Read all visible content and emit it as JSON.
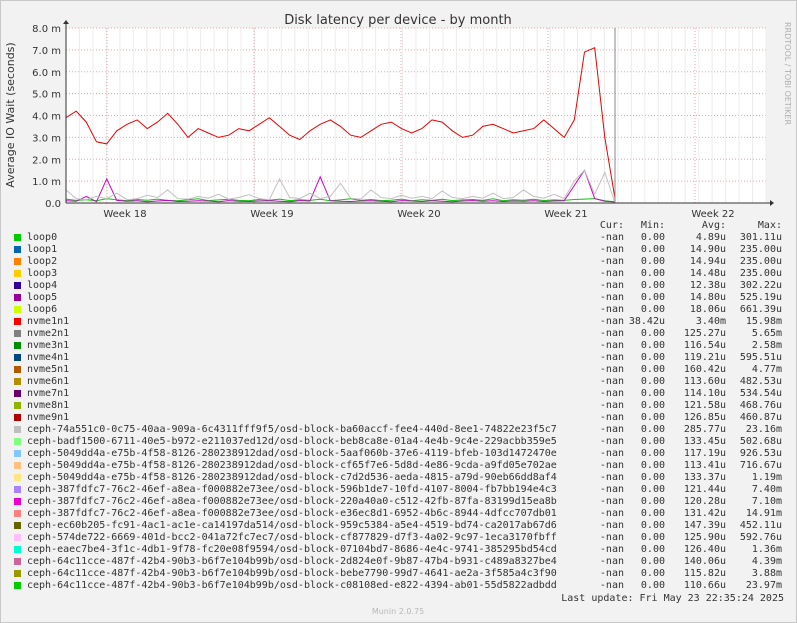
{
  "chart_data": {
    "type": "line",
    "title": "Disk latency per device - by month",
    "ylabel": "Average IO Wait (seconds)",
    "ylim": [
      0,
      0.008
    ],
    "y_ticks": [
      "0.0",
      "1.0 m",
      "2.0 m",
      "3.0 m",
      "4.0 m",
      "5.0 m",
      "6.0 m",
      "7.0 m",
      "8.0 m"
    ],
    "x_ticks": [
      "Week 18",
      "Week 19",
      "Week 20",
      "Week 21",
      "Week 22"
    ],
    "grid": true,
    "watermark": "RRDTOOL / TOBI OETIKER",
    "series": [
      {
        "name": "nvme1n1",
        "color": "#ea0000",
        "values": [
          0.0039,
          0.0042,
          0.0037,
          0.0028,
          0.0027,
          0.0033,
          0.0036,
          0.0038,
          0.0034,
          0.0037,
          0.0041,
          0.0036,
          0.003,
          0.0034,
          0.0032,
          0.003,
          0.0031,
          0.0034,
          0.0033,
          0.0036,
          0.0039,
          0.0035,
          0.0031,
          0.0029,
          0.0033,
          0.0036,
          0.0038,
          0.0035,
          0.0031,
          0.003,
          0.0033,
          0.0036,
          0.0037,
          0.0034,
          0.0032,
          0.0034,
          0.0038,
          0.0037,
          0.0033,
          0.003,
          0.0031,
          0.0035,
          0.0036,
          0.0034,
          0.0032,
          0.0033,
          0.0034,
          0.0038,
          0.0034,
          0.003,
          0.0038,
          0.0069,
          0.0071,
          0.003,
          0.0002
        ]
      },
      {
        "name": "ceph-eaec7be4-3f1c-4db1-9f78-fc20e08f9594/osd-block-07104bd7-8686-4e4c-9741-385295bd54cd",
        "color": "#00cc00",
        "values": [
          0.00018,
          0.00012,
          0.00015,
          0.0001,
          0.0002,
          0.00014,
          0.00011,
          0.00016,
          0.00013,
          0.00018,
          0.00012,
          0.0001,
          0.00015,
          0.00019,
          0.00011,
          0.00014,
          0.00017,
          0.00012,
          0.0001,
          0.00016,
          0.00013,
          0.00018,
          0.00011,
          0.00015,
          0.00012,
          0.00017,
          0.0001,
          0.00014,
          0.00019,
          0.00012,
          0.00016,
          0.00011,
          0.00013,
          0.00018,
          0.0001,
          0.00015,
          0.00012,
          0.00017,
          0.00011,
          0.00014,
          0.00016,
          0.00012,
          0.00019,
          0.0001,
          0.00015,
          0.00013,
          0.00017,
          0.00011,
          0.00014,
          0.00012,
          0.00016,
          0.00018,
          0.0002,
          0.0001,
          5e-05
        ]
      },
      {
        "name": "ceph-387fdfc7-76c2-46ef-a8ea-f000882e73ee/osd-block-220a40a0-c512-42fb-87fa-83199d15ea8b",
        "color": "#cc00cc",
        "values": [
          0.0001,
          8e-05,
          0.0003,
          6e-05,
          0.0011,
          0.00012,
          8e-05,
          0.0001,
          6e-05,
          9e-05,
          0.00012,
          7e-05,
          8e-05,
          0.0001,
          9e-05,
          6e-05,
          0.00011,
          8e-05,
          7e-05,
          9e-05,
          0.0001,
          8e-05,
          6e-05,
          0.00011,
          9e-05,
          0.0012,
          0.0001,
          8e-05,
          7e-05,
          9e-05,
          0.0001,
          8e-05,
          6e-05,
          0.00011,
          9e-05,
          7e-05,
          0.0001,
          8e-05,
          6e-05,
          9e-05,
          0.00011,
          8e-05,
          0.0001,
          7e-05,
          9e-05,
          8e-05,
          0.0001,
          7e-05,
          9e-05,
          0.0001,
          0.0008,
          0.0015,
          0.0002,
          8e-05,
          5e-05
        ]
      },
      {
        "name": "ceph-74a551c0-0c75-40aa-909a-6c4311fff9f5/osd-block-ba60accf-fee4-440d-8ee1-74822e23f5c7",
        "color": "#c0c0c0",
        "values": [
          0.0006,
          0.0002,
          0.00015,
          0.0003,
          0.0002,
          0.00045,
          0.00015,
          0.0002,
          0.00035,
          0.00025,
          0.0006,
          0.0002,
          0.00018,
          0.0003,
          0.00022,
          0.0004,
          0.00018,
          0.00025,
          0.00038,
          0.0002,
          0.00015,
          0.0011,
          0.00025,
          0.0002,
          0.00045,
          0.0002,
          0.0003,
          0.0009,
          0.00022,
          0.00018,
          0.0006,
          0.00025,
          0.0002,
          0.00035,
          0.00022,
          0.0003,
          0.0002,
          0.00055,
          0.00025,
          0.0002,
          0.0003,
          0.00022,
          0.00045,
          0.0002,
          0.00025,
          0.0006,
          0.0003,
          0.00022,
          0.0004,
          0.0002,
          0.001,
          0.0015,
          0.0004,
          0.0014,
          0.0
        ]
      }
    ]
  },
  "legend": {
    "headers": {
      "cur": "Cur:",
      "min": "Min:",
      "avg": "Avg:",
      "max": "Max:"
    },
    "rows": [
      {
        "name": "loop0",
        "color": "#00cc00",
        "cur": "-nan",
        "min": "0.00",
        "avg": "4.89u",
        "max": "301.11u"
      },
      {
        "name": "loop1",
        "color": "#0066b3",
        "cur": "-nan",
        "min": "0.00",
        "avg": "14.90u",
        "max": "235.00u"
      },
      {
        "name": "loop2",
        "color": "#ff8000",
        "cur": "-nan",
        "min": "0.00",
        "avg": "14.94u",
        "max": "235.00u"
      },
      {
        "name": "loop3",
        "color": "#ffcc00",
        "cur": "-nan",
        "min": "0.00",
        "avg": "14.48u",
        "max": "235.00u"
      },
      {
        "name": "loop4",
        "color": "#330099",
        "cur": "-nan",
        "min": "0.00",
        "avg": "12.38u",
        "max": "302.22u"
      },
      {
        "name": "loop5",
        "color": "#990099",
        "cur": "-nan",
        "min": "0.00",
        "avg": "14.80u",
        "max": "525.19u"
      },
      {
        "name": "loop6",
        "color": "#ccff00",
        "cur": "-nan",
        "min": "0.00",
        "avg": "18.06u",
        "max": "661.39u"
      },
      {
        "name": "nvme1n1",
        "color": "#ff0000",
        "cur": "-nan",
        "min": "38.42u",
        "avg": "3.40m",
        "max": "15.98m"
      },
      {
        "name": "nvme2n1",
        "color": "#808080",
        "cur": "-nan",
        "min": "0.00",
        "avg": "125.27u",
        "max": "5.65m"
      },
      {
        "name": "nvme3n1",
        "color": "#008f00",
        "cur": "-nan",
        "min": "0.00",
        "avg": "116.54u",
        "max": "2.58m"
      },
      {
        "name": "nvme4n1",
        "color": "#00487d",
        "cur": "-nan",
        "min": "0.00",
        "avg": "119.21u",
        "max": "595.51u"
      },
      {
        "name": "nvme5n1",
        "color": "#b35a00",
        "cur": "-nan",
        "min": "0.00",
        "avg": "160.42u",
        "max": "4.77m"
      },
      {
        "name": "nvme6n1",
        "color": "#b38f00",
        "cur": "-nan",
        "min": "0.00",
        "avg": "113.60u",
        "max": "482.53u"
      },
      {
        "name": "nvme7n1",
        "color": "#6b006b",
        "cur": "-nan",
        "min": "0.00",
        "avg": "114.10u",
        "max": "534.54u"
      },
      {
        "name": "nvme8n1",
        "color": "#8fb300",
        "cur": "-nan",
        "min": "0.00",
        "avg": "121.58u",
        "max": "468.76u"
      },
      {
        "name": "nvme9n1",
        "color": "#b30000",
        "cur": "-nan",
        "min": "0.00",
        "avg": "126.85u",
        "max": "460.87u"
      },
      {
        "name": "ceph-74a551c0-0c75-40aa-909a-6c4311fff9f5/osd-block-ba60accf-fee4-440d-8ee1-74822e23f5c7",
        "color": "#bebebe",
        "cur": "-nan",
        "min": "0.00",
        "avg": "285.77u",
        "max": "23.16m"
      },
      {
        "name": "ceph-badf1500-6711-40e5-b972-e211037ed12d/osd-block-beb8ca8e-01a4-4e4b-9c4e-229acbb359e5",
        "color": "#80ff80",
        "cur": "-nan",
        "min": "0.00",
        "avg": "133.45u",
        "max": "502.68u"
      },
      {
        "name": "ceph-5049dd4a-e75b-4f58-8126-280238912dad/osd-block-5aaf060b-37e6-4119-bfeb-103d1472470e",
        "color": "#80c9ff",
        "cur": "-nan",
        "min": "0.00",
        "avg": "117.19u",
        "max": "926.53u"
      },
      {
        "name": "ceph-5049dd4a-e75b-4f58-8126-280238912dad/osd-block-cf65f7e6-5d8d-4e86-9cda-a9fd05e702ae",
        "color": "#ffc080",
        "cur": "-nan",
        "min": "0.00",
        "avg": "113.41u",
        "max": "716.67u"
      },
      {
        "name": "ceph-5049dd4a-e75b-4f58-8126-280238912dad/osd-block-c7d2d536-aeda-4815-a79d-90eb66dd8af4",
        "color": "#ffe680",
        "cur": "-nan",
        "min": "0.00",
        "avg": "133.37u",
        "max": "1.19m"
      },
      {
        "name": "ceph-387fdfc7-76c2-46ef-a8ea-f000882e73ee/osd-block-596b1de7-10fd-4107-8004-fb7bb194e4c3",
        "color": "#aa80ff",
        "cur": "-nan",
        "min": "0.00",
        "avg": "121.44u",
        "max": "7.40m"
      },
      {
        "name": "ceph-387fdfc7-76c2-46ef-a8ea-f000882e73ee/osd-block-220a40a0-c512-42fb-87fa-83199d15ea8b",
        "color": "#ee00cc",
        "cur": "-nan",
        "min": "0.00",
        "avg": "120.28u",
        "max": "7.10m"
      },
      {
        "name": "ceph-387fdfc7-76c2-46ef-a8ea-f000882e73ee/osd-block-e36ec8d1-6952-4b6c-8944-4dfcc707db01",
        "color": "#ff8080",
        "cur": "-nan",
        "min": "0.00",
        "avg": "131.42u",
        "max": "14.91m"
      },
      {
        "name": "ceph-ec60b205-fc91-4ac1-ac1e-ca14197da514/osd-block-959c5384-a5e4-4519-bd74-ca2017ab67d6",
        "color": "#666600",
        "cur": "-nan",
        "min": "0.00",
        "avg": "147.39u",
        "max": "452.11u"
      },
      {
        "name": "ceph-574de722-6669-401d-bcc2-041a72fc7ec7/osd-block-cf877829-d7f3-4a02-9c97-1eca3170fbff",
        "color": "#ffbfff",
        "cur": "-nan",
        "min": "0.00",
        "avg": "125.90u",
        "max": "592.76u"
      },
      {
        "name": "ceph-eaec7be4-3f1c-4db1-9f78-fc20e08f9594/osd-block-07104bd7-8686-4e4c-9741-385295bd54cd",
        "color": "#00ffcc",
        "cur": "-nan",
        "min": "0.00",
        "avg": "126.40u",
        "max": "1.36m"
      },
      {
        "name": "ceph-64c11cce-487f-42b4-90b3-b6f7e104b99b/osd-block-2d824e0f-9b87-47b4-b931-c489a8327be4",
        "color": "#cc6699",
        "cur": "-nan",
        "min": "0.00",
        "avg": "140.06u",
        "max": "4.39m"
      },
      {
        "name": "ceph-64c11cce-487f-42b4-90b3-b6f7e104b99b/osd-block-bebe7790-99d7-4641-ae2a-3f585a4c3f90",
        "color": "#999900",
        "cur": "-nan",
        "min": "0.00",
        "avg": "115.82u",
        "max": "3.88m"
      },
      {
        "name": "ceph-64c11cce-487f-42b4-90b3-b6f7e104b99b/osd-block-c08108ed-e822-4394-ab01-55d5822adbdd",
        "color": "#00cc00",
        "cur": "-nan",
        "min": "0.00",
        "avg": "110.66u",
        "max": "23.97m"
      }
    ]
  },
  "last_update": "Last update: Fri May 23 22:35:24 2025",
  "footer": "Munin 2.0.75"
}
